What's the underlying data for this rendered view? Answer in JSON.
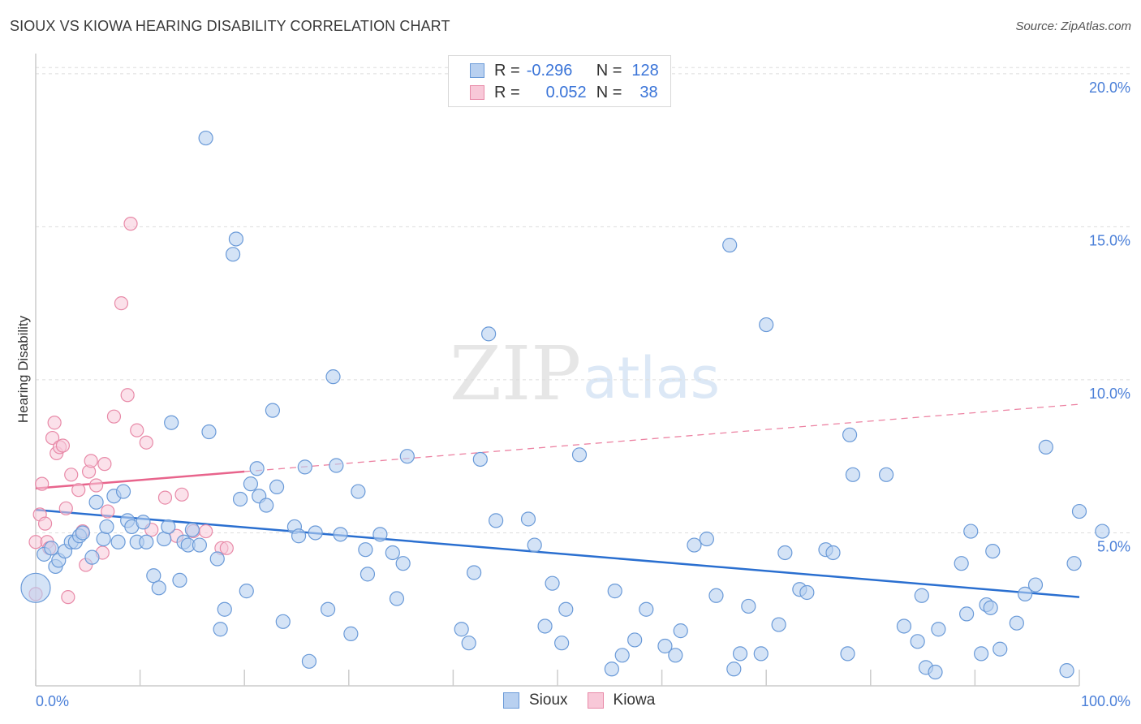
{
  "title": "SIOUX VS KIOWA HEARING DISABILITY CORRELATION CHART",
  "source": "Source: ZipAtlas.com",
  "legend": {
    "rows": [
      {
        "r_label": "R =",
        "r_value": "-0.296",
        "n_label": "N =",
        "n_value": "128",
        "color": "#b8d0f0",
        "border": "#6a9ad8"
      },
      {
        "r_label": "R =",
        "r_value": "0.052",
        "n_label": "N =",
        "n_value": "38",
        "color": "#f8c8d8",
        "border": "#e88aa8"
      }
    ]
  },
  "bottom_legend": [
    {
      "label": "Sioux",
      "color": "#b8d0f0",
      "border": "#6a9ad8"
    },
    {
      "label": "Kiowa",
      "color": "#f8c8d8",
      "border": "#e88aa8"
    }
  ],
  "watermark": {
    "zip": "ZIP",
    "atlas": "atlas"
  },
  "chart_data": {
    "type": "scatter",
    "title": "SIOUX VS KIOWA HEARING DISABILITY CORRELATION CHART",
    "xlabel": "",
    "ylabel": "Hearing Disability",
    "xlim": [
      0,
      100
    ],
    "ylim": [
      0,
      20.5
    ],
    "x_tick_labels": [
      {
        "value": 0,
        "label": "0.0%"
      },
      {
        "value": 100,
        "label": "100.0%"
      }
    ],
    "y_tick_labels": [
      {
        "value": 5,
        "label": "5.0%"
      },
      {
        "value": 10,
        "label": "10.0%"
      },
      {
        "value": 15,
        "label": "15.0%"
      },
      {
        "value": 20,
        "label": "20.0%"
      }
    ],
    "colors": {
      "sioux": "#6a9ad8",
      "sioux_fill": "#b8d0f0",
      "sioux_line": "#2a6fd0",
      "kiowa": "#e88aa8",
      "kiowa_fill": "#f8c8d8",
      "kiowa_line": "#e8648c"
    },
    "series": [
      {
        "name": "Sioux",
        "trend": {
          "x": [
            0,
            100
          ],
          "y": [
            5.75,
            2.9
          ],
          "style": "solid"
        },
        "points": [
          [
            0,
            3.2
          ],
          [
            0.8,
            4.3
          ],
          [
            1.5,
            4.5
          ],
          [
            1.9,
            3.9
          ],
          [
            2.2,
            4.1
          ],
          [
            2.8,
            4.4
          ],
          [
            3.4,
            4.7
          ],
          [
            3.8,
            4.7
          ],
          [
            4.2,
            4.9
          ],
          [
            4.5,
            5.0
          ],
          [
            5.4,
            4.2
          ],
          [
            5.8,
            6.0
          ],
          [
            6.5,
            4.8
          ],
          [
            6.8,
            5.2
          ],
          [
            7.5,
            6.2
          ],
          [
            7.9,
            4.7
          ],
          [
            8.4,
            6.35
          ],
          [
            8.8,
            5.4
          ],
          [
            9.2,
            5.2
          ],
          [
            9.7,
            4.7
          ],
          [
            10.3,
            5.35
          ],
          [
            10.6,
            4.7
          ],
          [
            11.3,
            3.6
          ],
          [
            11.8,
            3.2
          ],
          [
            12.3,
            4.8
          ],
          [
            12.7,
            5.2
          ],
          [
            13.0,
            8.6
          ],
          [
            13.8,
            3.45
          ],
          [
            14.2,
            4.7
          ],
          [
            14.6,
            4.6
          ],
          [
            15.0,
            5.1
          ],
          [
            15.7,
            4.6
          ],
          [
            16.3,
            17.9
          ],
          [
            16.6,
            8.3
          ],
          [
            17.4,
            4.15
          ],
          [
            17.7,
            1.85
          ],
          [
            18.1,
            2.5
          ],
          [
            18.9,
            14.1
          ],
          [
            19.2,
            14.6
          ],
          [
            19.6,
            6.1
          ],
          [
            20.2,
            3.1
          ],
          [
            20.6,
            6.6
          ],
          [
            21.2,
            7.1
          ],
          [
            21.4,
            6.2
          ],
          [
            22.1,
            5.9
          ],
          [
            22.7,
            9.0
          ],
          [
            23.1,
            6.5
          ],
          [
            23.7,
            2.1
          ],
          [
            24.8,
            5.2
          ],
          [
            25.2,
            4.9
          ],
          [
            25.8,
            7.15
          ],
          [
            26.2,
            0.8
          ],
          [
            26.8,
            5.0
          ],
          [
            28.0,
            2.5
          ],
          [
            28.5,
            10.1
          ],
          [
            28.8,
            7.2
          ],
          [
            29.2,
            4.95
          ],
          [
            30.2,
            1.7
          ],
          [
            30.9,
            6.35
          ],
          [
            31.6,
            4.45
          ],
          [
            31.8,
            3.65
          ],
          [
            33.0,
            4.95
          ],
          [
            34.2,
            4.35
          ],
          [
            34.6,
            2.85
          ],
          [
            35.2,
            4.0
          ],
          [
            35.6,
            7.5
          ],
          [
            40.8,
            1.85
          ],
          [
            41.5,
            1.4
          ],
          [
            42.0,
            3.7
          ],
          [
            42.6,
            7.4
          ],
          [
            43.4,
            11.5
          ],
          [
            44.1,
            5.4
          ],
          [
            47.2,
            5.45
          ],
          [
            47.8,
            4.6
          ],
          [
            48.8,
            1.95
          ],
          [
            49.5,
            3.35
          ],
          [
            50.4,
            1.4
          ],
          [
            50.8,
            2.5
          ],
          [
            52.1,
            7.55
          ],
          [
            55.2,
            0.55
          ],
          [
            55.5,
            3.1
          ],
          [
            56.2,
            1.0
          ],
          [
            57.4,
            1.5
          ],
          [
            58.5,
            2.5
          ],
          [
            60.3,
            1.3
          ],
          [
            61.3,
            1.0
          ],
          [
            61.8,
            1.8
          ],
          [
            63.1,
            4.6
          ],
          [
            64.3,
            4.8
          ],
          [
            65.2,
            2.95
          ],
          [
            66.5,
            14.4
          ],
          [
            66.9,
            0.55
          ],
          [
            67.5,
            1.05
          ],
          [
            68.3,
            2.6
          ],
          [
            69.5,
            1.05
          ],
          [
            70.0,
            11.8
          ],
          [
            71.2,
            2.0
          ],
          [
            71.8,
            4.35
          ],
          [
            73.2,
            3.15
          ],
          [
            73.9,
            3.05
          ],
          [
            75.7,
            4.45
          ],
          [
            76.4,
            4.35
          ],
          [
            77.8,
            1.05
          ],
          [
            78.0,
            8.2
          ],
          [
            78.3,
            6.9
          ],
          [
            81.5,
            6.9
          ],
          [
            83.2,
            1.95
          ],
          [
            84.5,
            1.45
          ],
          [
            84.9,
            2.95
          ],
          [
            85.3,
            0.6
          ],
          [
            86.2,
            0.45
          ],
          [
            86.5,
            1.85
          ],
          [
            88.7,
            4.0
          ],
          [
            89.2,
            2.35
          ],
          [
            89.6,
            5.05
          ],
          [
            90.6,
            1.05
          ],
          [
            91.1,
            2.65
          ],
          [
            91.5,
            2.55
          ],
          [
            91.7,
            4.4
          ],
          [
            92.4,
            1.2
          ],
          [
            94.0,
            2.05
          ],
          [
            94.8,
            3.0
          ],
          [
            95.8,
            3.3
          ],
          [
            96.8,
            7.8
          ],
          [
            98.8,
            0.5
          ],
          [
            99.5,
            4.0
          ],
          [
            100.0,
            5.7
          ],
          [
            102.2,
            5.05
          ]
        ]
      },
      {
        "name": "Kiowa",
        "trend_solid": {
          "x": [
            0,
            20
          ],
          "y": [
            6.45,
            7.0
          ],
          "style": "solid"
        },
        "trend_dashed": {
          "x": [
            20,
            100
          ],
          "y": [
            7.0,
            9.2
          ],
          "style": "dashed"
        },
        "points": [
          [
            0,
            3.0
          ],
          [
            0,
            4.7
          ],
          [
            0.4,
            5.6
          ],
          [
            0.6,
            6.6
          ],
          [
            0.9,
            5.3
          ],
          [
            1.1,
            4.7
          ],
          [
            1.3,
            4.5
          ],
          [
            1.6,
            8.1
          ],
          [
            1.8,
            8.6
          ],
          [
            2.0,
            7.6
          ],
          [
            2.3,
            7.8
          ],
          [
            2.6,
            7.85
          ],
          [
            2.9,
            5.8
          ],
          [
            3.1,
            2.9
          ],
          [
            3.4,
            6.9
          ],
          [
            4.1,
            6.4
          ],
          [
            4.5,
            5.05
          ],
          [
            4.8,
            3.95
          ],
          [
            5.1,
            7.0
          ],
          [
            5.3,
            7.35
          ],
          [
            5.8,
            6.55
          ],
          [
            6.4,
            4.35
          ],
          [
            6.6,
            7.25
          ],
          [
            6.9,
            5.7
          ],
          [
            7.5,
            8.8
          ],
          [
            8.2,
            12.5
          ],
          [
            8.8,
            9.5
          ],
          [
            9.1,
            15.1
          ],
          [
            9.7,
            8.35
          ],
          [
            10.6,
            7.95
          ],
          [
            11.1,
            5.1
          ],
          [
            12.4,
            6.15
          ],
          [
            13.5,
            4.9
          ],
          [
            14.0,
            6.25
          ],
          [
            15.1,
            5.05
          ],
          [
            16.3,
            5.05
          ],
          [
            17.8,
            4.5
          ],
          [
            18.3,
            4.5
          ]
        ]
      }
    ]
  }
}
